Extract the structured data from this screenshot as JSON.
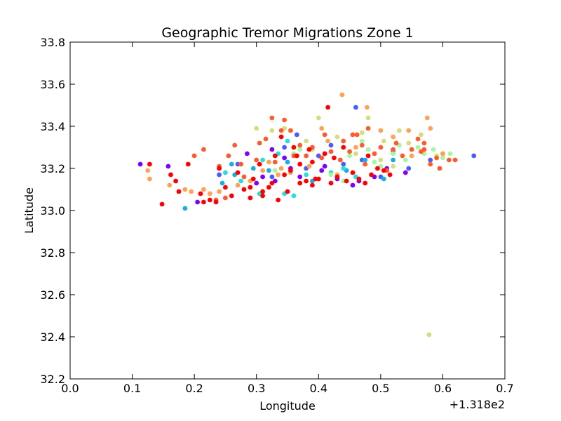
{
  "chart_data": {
    "type": "scatter",
    "title": "Geographic Tremor Migrations Zone 1",
    "xlabel": "Longitude",
    "ylabel": "Latitude",
    "x_offset_text": "+1.318e2",
    "xlim": [
      0.0,
      0.7
    ],
    "ylim": [
      32.2,
      33.8
    ],
    "xticks": [
      "0.0",
      "0.1",
      "0.2",
      "0.3",
      "0.4",
      "0.5",
      "0.6",
      "0.7"
    ],
    "yticks": [
      "32.2",
      "32.4",
      "32.6",
      "32.8",
      "33.0",
      "33.2",
      "33.4",
      "33.6",
      "33.8"
    ],
    "grid": false,
    "legend": "none",
    "colormap": "rainbow",
    "series": [
      {
        "color": "#8000ff",
        "points": [
          [
            0.113,
            33.22
          ],
          [
            0.158,
            33.21
          ],
          [
            0.205,
            33.04
          ],
          [
            0.285,
            33.27
          ],
          [
            0.3,
            33.13
          ],
          [
            0.31,
            33.16
          ],
          [
            0.33,
            33.14
          ],
          [
            0.345,
            33.25
          ],
          [
            0.355,
            33.2
          ],
          [
            0.37,
            33.16
          ],
          [
            0.405,
            33.19
          ],
          [
            0.41,
            33.21
          ],
          [
            0.43,
            33.15
          ],
          [
            0.455,
            33.12
          ],
          [
            0.465,
            33.14
          ],
          [
            0.49,
            33.16
          ],
          [
            0.51,
            33.2
          ],
          [
            0.54,
            33.18
          ],
          [
            0.325,
            33.29
          ]
        ]
      },
      {
        "color": "#4a5cfa",
        "points": [
          [
            0.24,
            33.17
          ],
          [
            0.27,
            33.22
          ],
          [
            0.325,
            33.16
          ],
          [
            0.345,
            33.3
          ],
          [
            0.38,
            33.2
          ],
          [
            0.4,
            33.26
          ],
          [
            0.42,
            33.31
          ],
          [
            0.44,
            33.22
          ],
          [
            0.46,
            33.49
          ],
          [
            0.5,
            33.16
          ],
          [
            0.52,
            33.28
          ],
          [
            0.545,
            33.2
          ],
          [
            0.58,
            33.24
          ],
          [
            0.6,
            33.27
          ],
          [
            0.65,
            33.26
          ],
          [
            0.47,
            33.24
          ],
          [
            0.365,
            33.36
          ]
        ]
      },
      {
        "color": "#18ade4",
        "points": [
          [
            0.185,
            33.01
          ],
          [
            0.245,
            33.13
          ],
          [
            0.265,
            33.17
          ],
          [
            0.295,
            33.2
          ],
          [
            0.32,
            33.19
          ],
          [
            0.35,
            33.23
          ],
          [
            0.39,
            33.14
          ],
          [
            0.445,
            33.19
          ],
          [
            0.475,
            33.24
          ],
          [
            0.505,
            33.15
          ],
          [
            0.52,
            33.24
          ],
          [
            0.41,
            33.27
          ],
          [
            0.26,
            33.22
          ]
        ]
      },
      {
        "color": "#2adddd",
        "points": [
          [
            0.25,
            33.18
          ],
          [
            0.29,
            33.06
          ],
          [
            0.305,
            33.08
          ],
          [
            0.345,
            33.08
          ],
          [
            0.35,
            33.33
          ],
          [
            0.36,
            33.07
          ],
          [
            0.38,
            33.17
          ],
          [
            0.42,
            33.18
          ],
          [
            0.44,
            33.2
          ],
          [
            0.46,
            33.16
          ],
          [
            0.335,
            33.27
          ],
          [
            0.31,
            33.24
          ],
          [
            0.275,
            33.14
          ]
        ]
      },
      {
        "color": "#a4f89f",
        "points": [
          [
            0.33,
            33.19
          ],
          [
            0.36,
            33.27
          ],
          [
            0.42,
            33.17
          ],
          [
            0.45,
            33.26
          ],
          [
            0.48,
            33.29
          ],
          [
            0.5,
            33.21
          ],
          [
            0.52,
            33.27
          ],
          [
            0.54,
            33.24
          ],
          [
            0.56,
            33.3
          ],
          [
            0.585,
            33.29
          ],
          [
            0.6,
            33.25
          ],
          [
            0.612,
            33.27
          ],
          [
            0.49,
            33.23
          ],
          [
            0.47,
            33.33
          ],
          [
            0.53,
            33.31
          ],
          [
            0.57,
            33.27
          ],
          [
            0.44,
            33.14
          ],
          [
            0.37,
            33.29
          ]
        ]
      },
      {
        "color": "#d4dd80",
        "points": [
          [
            0.3,
            33.39
          ],
          [
            0.325,
            33.38
          ],
          [
            0.345,
            33.39
          ],
          [
            0.39,
            33.29
          ],
          [
            0.4,
            33.44
          ],
          [
            0.43,
            33.35
          ],
          [
            0.47,
            33.37
          ],
          [
            0.48,
            33.44
          ],
          [
            0.5,
            33.24
          ],
          [
            0.53,
            33.38
          ],
          [
            0.545,
            33.32
          ],
          [
            0.565,
            33.36
          ],
          [
            0.578,
            32.41
          ],
          [
            0.52,
            33.21
          ],
          [
            0.46,
            33.27
          ],
          [
            0.505,
            33.33
          ],
          [
            0.38,
            33.33
          ],
          [
            0.59,
            33.26
          ]
        ]
      },
      {
        "color": "#ffa256",
        "points": [
          [
            0.125,
            33.19
          ],
          [
            0.128,
            33.15
          ],
          [
            0.16,
            33.12
          ],
          [
            0.185,
            33.1
          ],
          [
            0.195,
            33.09
          ],
          [
            0.215,
            33.1
          ],
          [
            0.225,
            33.08
          ],
          [
            0.24,
            33.09
          ],
          [
            0.27,
            33.12
          ],
          [
            0.29,
            33.14
          ],
          [
            0.31,
            33.19
          ],
          [
            0.32,
            33.23
          ],
          [
            0.34,
            33.2
          ],
          [
            0.355,
            33.18
          ],
          [
            0.385,
            33.21
          ],
          [
            0.405,
            33.39
          ],
          [
            0.415,
            33.33
          ],
          [
            0.438,
            33.55
          ],
          [
            0.478,
            33.49
          ],
          [
            0.5,
            33.38
          ],
          [
            0.52,
            33.35
          ],
          [
            0.545,
            33.38
          ],
          [
            0.575,
            33.44
          ],
          [
            0.58,
            33.39
          ],
          [
            0.6,
            33.27
          ],
          [
            0.55,
            33.26
          ],
          [
            0.46,
            33.3
          ],
          [
            0.43,
            33.17
          ],
          [
            0.335,
            33.17
          ]
        ]
      },
      {
        "color": "#ff5a2c",
        "points": [
          [
            0.2,
            33.26
          ],
          [
            0.215,
            33.29
          ],
          [
            0.24,
            33.21
          ],
          [
            0.25,
            33.06
          ],
          [
            0.265,
            33.31
          ],
          [
            0.275,
            33.22
          ],
          [
            0.3,
            33.24
          ],
          [
            0.315,
            33.34
          ],
          [
            0.325,
            33.44
          ],
          [
            0.34,
            33.38
          ],
          [
            0.345,
            33.43
          ],
          [
            0.355,
            33.38
          ],
          [
            0.37,
            33.31
          ],
          [
            0.38,
            33.26
          ],
          [
            0.39,
            33.3
          ],
          [
            0.405,
            33.25
          ],
          [
            0.42,
            33.28
          ],
          [
            0.435,
            33.24
          ],
          [
            0.44,
            33.33
          ],
          [
            0.455,
            33.36
          ],
          [
            0.462,
            33.36
          ],
          [
            0.47,
            33.31
          ],
          [
            0.48,
            33.39
          ],
          [
            0.49,
            33.27
          ],
          [
            0.5,
            33.3
          ],
          [
            0.51,
            33.19
          ],
          [
            0.52,
            33.29
          ],
          [
            0.535,
            33.26
          ],
          [
            0.55,
            33.29
          ],
          [
            0.56,
            33.34
          ],
          [
            0.57,
            33.29
          ],
          [
            0.58,
            33.22
          ],
          [
            0.59,
            33.25
          ],
          [
            0.61,
            33.24
          ],
          [
            0.62,
            33.24
          ],
          [
            0.595,
            33.2
          ],
          [
            0.525,
            33.32
          ],
          [
            0.475,
            33.22
          ],
          [
            0.41,
            33.36
          ],
          [
            0.36,
            33.26
          ],
          [
            0.33,
            33.23
          ],
          [
            0.305,
            33.32
          ],
          [
            0.28,
            33.16
          ],
          [
            0.255,
            33.26
          ],
          [
            0.235,
            33.05
          ],
          [
            0.57,
            33.32
          ],
          [
            0.565,
            33.28
          ],
          [
            0.45,
            33.28
          ]
        ]
      },
      {
        "color": "#ff0000",
        "points": [
          [
            0.128,
            33.22
          ],
          [
            0.148,
            33.03
          ],
          [
            0.162,
            33.17
          ],
          [
            0.17,
            33.14
          ],
          [
            0.175,
            33.09
          ],
          [
            0.19,
            33.22
          ],
          [
            0.21,
            33.08
          ],
          [
            0.215,
            33.04
          ],
          [
            0.225,
            33.05
          ],
          [
            0.235,
            33.04
          ],
          [
            0.24,
            33.2
          ],
          [
            0.25,
            33.11
          ],
          [
            0.26,
            33.07
          ],
          [
            0.27,
            33.18
          ],
          [
            0.28,
            33.1
          ],
          [
            0.29,
            33.11
          ],
          [
            0.295,
            33.15
          ],
          [
            0.305,
            33.22
          ],
          [
            0.31,
            33.09
          ],
          [
            0.32,
            33.11
          ],
          [
            0.325,
            33.13
          ],
          [
            0.33,
            33.26
          ],
          [
            0.34,
            33.35
          ],
          [
            0.345,
            33.17
          ],
          [
            0.355,
            33.19
          ],
          [
            0.365,
            33.26
          ],
          [
            0.37,
            33.13
          ],
          [
            0.38,
            33.14
          ],
          [
            0.385,
            33.29
          ],
          [
            0.39,
            33.12
          ],
          [
            0.395,
            33.15
          ],
          [
            0.4,
            33.15
          ],
          [
            0.41,
            33.27
          ],
          [
            0.415,
            33.49
          ],
          [
            0.425,
            33.25
          ],
          [
            0.43,
            33.16
          ],
          [
            0.445,
            33.14
          ],
          [
            0.455,
            33.18
          ],
          [
            0.465,
            33.15
          ],
          [
            0.475,
            33.13
          ],
          [
            0.485,
            33.17
          ],
          [
            0.495,
            33.2
          ],
          [
            0.505,
            33.19
          ],
          [
            0.515,
            33.17
          ],
          [
            0.335,
            33.05
          ],
          [
            0.35,
            33.09
          ],
          [
            0.31,
            33.07
          ],
          [
            0.29,
            33.06
          ],
          [
            0.36,
            33.3
          ],
          [
            0.42,
            33.13
          ],
          [
            0.44,
            33.3
          ],
          [
            0.48,
            33.26
          ],
          [
            0.37,
            33.22
          ],
          [
            0.39,
            33.23
          ]
        ]
      }
    ]
  }
}
